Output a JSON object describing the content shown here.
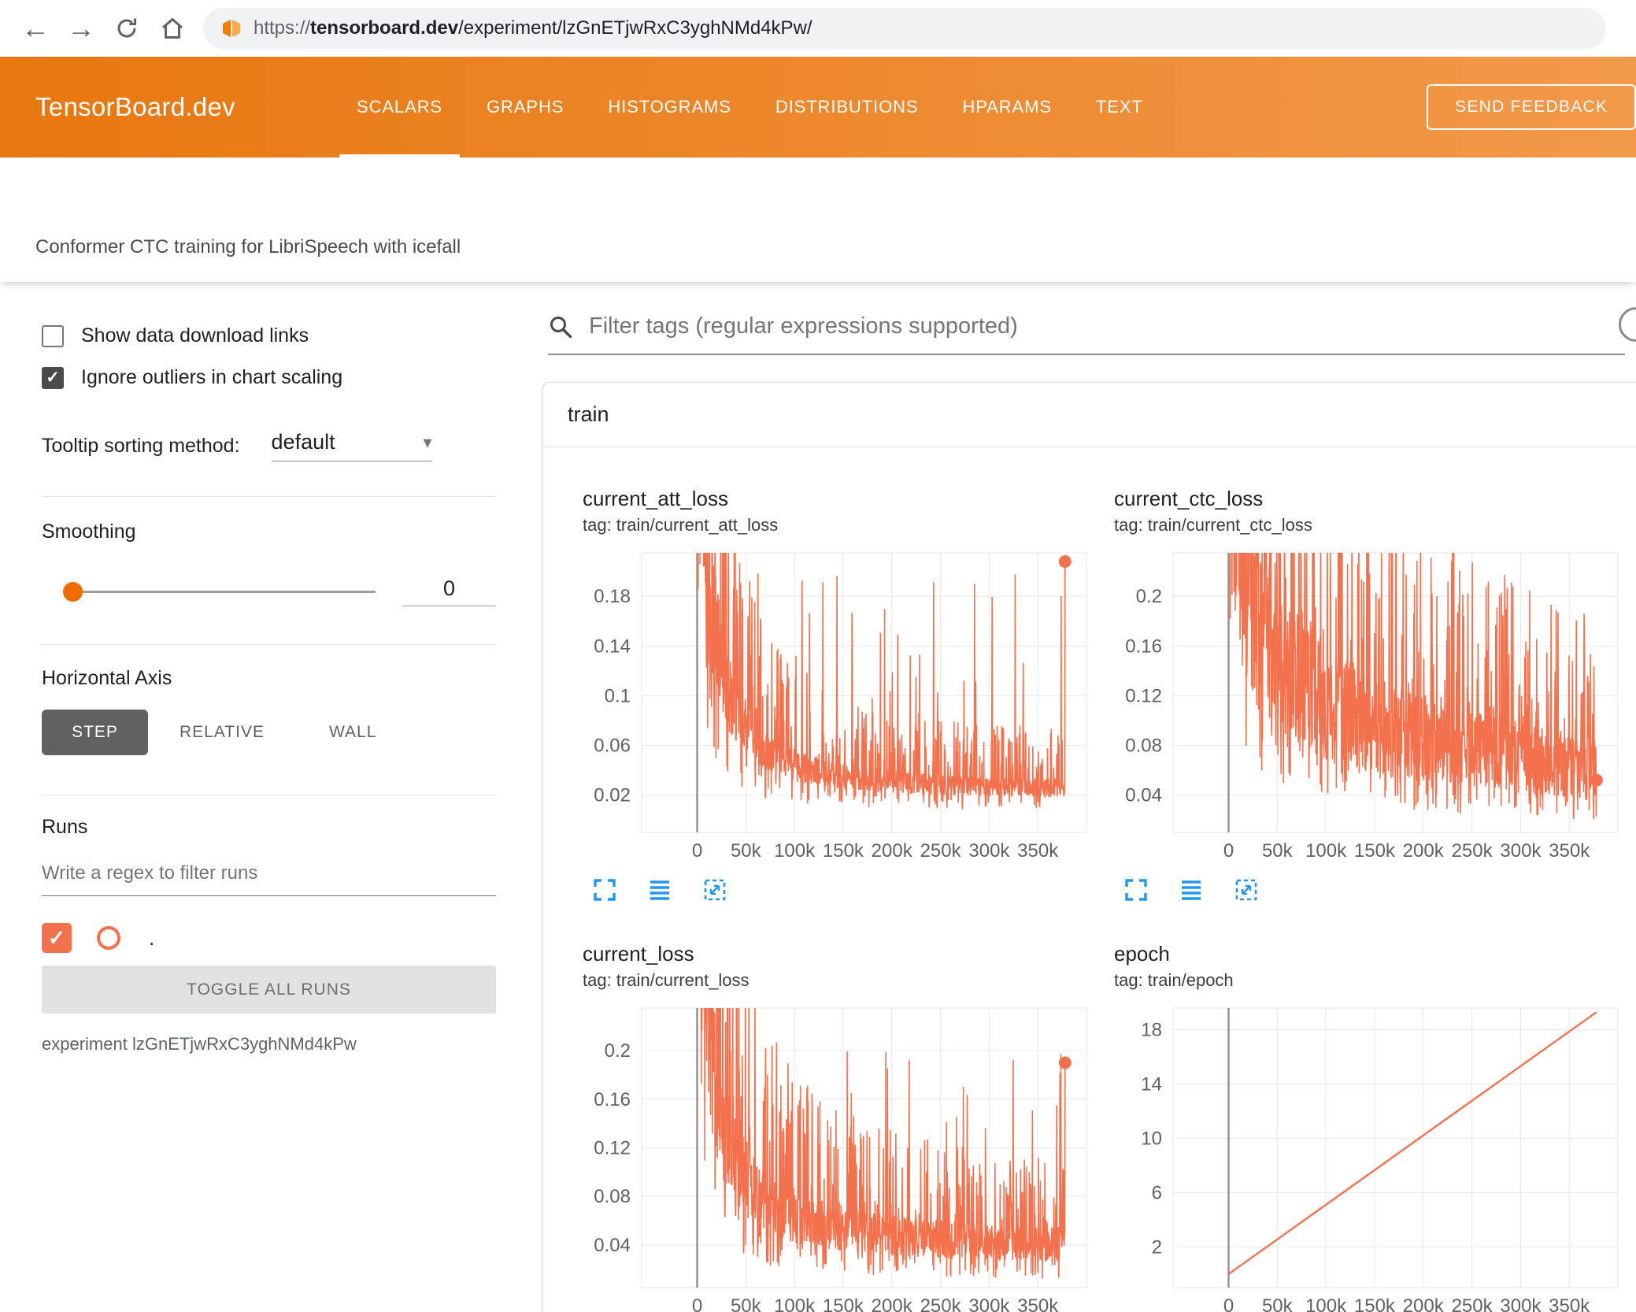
{
  "browser": {
    "url": {
      "scheme": "https://",
      "domain": "tensorboard.dev",
      "path": "/experiment/lzGnETjwRxC3yghNMd4kPw/"
    }
  },
  "header": {
    "brand": "TensorBoard.dev",
    "tabs": [
      {
        "label": "SCALARS",
        "active": true
      },
      {
        "label": "GRAPHS",
        "active": false
      },
      {
        "label": "HISTOGRAMS",
        "active": false
      },
      {
        "label": "DISTRIBUTIONS",
        "active": false
      },
      {
        "label": "HPARAMS",
        "active": false
      },
      {
        "label": "TEXT",
        "active": false
      }
    ],
    "feedback_button": "SEND FEEDBACK"
  },
  "experiment_title": "Conformer CTC training for LibriSpeech with icefall",
  "sidebar": {
    "show_download_label": "Show data download links",
    "show_download_checked": false,
    "ignore_outliers_label": "Ignore outliers in chart scaling",
    "ignore_outliers_checked": true,
    "tooltip_sorting_label": "Tooltip sorting method:",
    "tooltip_sorting_value": "default",
    "smoothing_label": "Smoothing",
    "smoothing_value": "0",
    "horizontal_axis_label": "Horizontal Axis",
    "axis_options": [
      {
        "label": "STEP",
        "selected": true
      },
      {
        "label": "RELATIVE",
        "selected": false
      },
      {
        "label": "WALL",
        "selected": false
      }
    ],
    "runs_label": "Runs",
    "runs_filter_placeholder": "Write a regex to filter runs",
    "run_name": ".",
    "run_checked": true,
    "toggle_all_label": "TOGGLE ALL RUNS",
    "experiment_line": "experiment lzGnETjwRxC3yghNMd4kPw"
  },
  "main": {
    "filter_placeholder": "Filter tags (regular expressions supported)",
    "section_title": "train"
  },
  "colors": {
    "header_orange": "#e8770f",
    "run_color": "#f4714e",
    "icon_blue": "#2196f3",
    "slider_orange": "#ef6c00"
  },
  "icons": {
    "back": "←",
    "forward": "→",
    "caret_down": "▾",
    "check": "✓"
  },
  "chart_data": [
    {
      "type": "line",
      "title": "current_att_loss",
      "tag": "tag: train/current_att_loss",
      "xlabel": "step",
      "grid": true,
      "xlim": [
        -57000,
        400000
      ],
      "ylim": [
        -0.01,
        0.215
      ],
      "yticks": [
        {
          "v": 0.02,
          "label": "0.02"
        },
        {
          "v": 0.06,
          "label": "0.06"
        },
        {
          "v": 0.1,
          "label": "0.1"
        },
        {
          "v": 0.14,
          "label": "0.14"
        },
        {
          "v": 0.18,
          "label": "0.18"
        }
      ],
      "xticks": [
        {
          "v": 0,
          "label": "0"
        },
        {
          "v": 50000,
          "label": "50k"
        },
        {
          "v": 100000,
          "label": "100k"
        },
        {
          "v": 150000,
          "label": "150k"
        },
        {
          "v": 200000,
          "label": "200k"
        },
        {
          "v": 250000,
          "label": "250k"
        },
        {
          "v": 300000,
          "label": "300k"
        },
        {
          "v": 350000,
          "label": "350k"
        }
      ],
      "series": {
        "name": ".",
        "color": "#f4714e",
        "width": 1.6,
        "noisy": true,
        "seed": 11,
        "points": 1150,
        "xmax": 378000,
        "trend": [
          [
            0,
            0.5
          ],
          [
            5000,
            0.3
          ],
          [
            15000,
            0.17
          ],
          [
            30000,
            0.105
          ],
          [
            60000,
            0.062
          ],
          [
            100000,
            0.044
          ],
          [
            150000,
            0.035
          ],
          [
            200000,
            0.031
          ],
          [
            260000,
            0.028
          ],
          [
            320000,
            0.027
          ],
          [
            378000,
            0.026
          ]
        ],
        "jitter": [
          0.7,
          1.3
        ],
        "spike_prob": 0.05,
        "spike_max": 0.2,
        "last_value": 0.208,
        "end_marker": true
      }
    },
    {
      "type": "line",
      "title": "current_ctc_loss",
      "tag": "tag: train/current_ctc_loss",
      "xlabel": "step",
      "grid": true,
      "xlim": [
        -57000,
        400000
      ],
      "ylim": [
        0.01,
        0.235
      ],
      "yticks": [
        {
          "v": 0.04,
          "label": "0.04"
        },
        {
          "v": 0.08,
          "label": "0.08"
        },
        {
          "v": 0.12,
          "label": "0.12"
        },
        {
          "v": 0.16,
          "label": "0.16"
        },
        {
          "v": 0.2,
          "label": "0.2"
        }
      ],
      "xticks": [
        {
          "v": 0,
          "label": "0"
        },
        {
          "v": 50000,
          "label": "50k"
        },
        {
          "v": 100000,
          "label": "100k"
        },
        {
          "v": 150000,
          "label": "150k"
        },
        {
          "v": 200000,
          "label": "200k"
        },
        {
          "v": 250000,
          "label": "250k"
        },
        {
          "v": 300000,
          "label": "300k"
        },
        {
          "v": 350000,
          "label": "350k"
        }
      ],
      "series": {
        "name": ".",
        "color": "#f4714e",
        "width": 1.6,
        "noisy": true,
        "seed": 23,
        "points": 1150,
        "xmax": 378000,
        "trend": [
          [
            0,
            0.55
          ],
          [
            5000,
            0.36
          ],
          [
            15000,
            0.25
          ],
          [
            30000,
            0.2
          ],
          [
            60000,
            0.155
          ],
          [
            100000,
            0.125
          ],
          [
            150000,
            0.103
          ],
          [
            200000,
            0.09
          ],
          [
            260000,
            0.08
          ],
          [
            320000,
            0.072
          ],
          [
            378000,
            0.065
          ]
        ],
        "jitter": [
          0.55,
          1.32
        ],
        "spike_prob": 0.04,
        "spike_max": 0.18,
        "last_value": 0.052,
        "end_marker": true
      }
    },
    {
      "type": "line",
      "title": "current_loss",
      "tag": "tag: train/current_loss",
      "xlabel": "step",
      "grid": true,
      "xlim": [
        -57000,
        400000
      ],
      "ylim": [
        0.005,
        0.235
      ],
      "yticks": [
        {
          "v": 0.04,
          "label": "0.04"
        },
        {
          "v": 0.08,
          "label": "0.08"
        },
        {
          "v": 0.12,
          "label": "0.12"
        },
        {
          "v": 0.16,
          "label": "0.16"
        },
        {
          "v": 0.2,
          "label": "0.2"
        }
      ],
      "xticks": [
        {
          "v": 0,
          "label": "0"
        },
        {
          "v": 50000,
          "label": "50k"
        },
        {
          "v": 100000,
          "label": "100k"
        },
        {
          "v": 150000,
          "label": "150k"
        },
        {
          "v": 200000,
          "label": "200k"
        },
        {
          "v": 250000,
          "label": "250k"
        },
        {
          "v": 300000,
          "label": "300k"
        },
        {
          "v": 350000,
          "label": "350k"
        }
      ],
      "series": {
        "name": ".",
        "color": "#f4714e",
        "width": 1.6,
        "noisy": true,
        "seed": 37,
        "points": 1150,
        "xmax": 378000,
        "trend": [
          [
            0,
            0.55
          ],
          [
            5000,
            0.33
          ],
          [
            15000,
            0.19
          ],
          [
            30000,
            0.125
          ],
          [
            60000,
            0.085
          ],
          [
            100000,
            0.063
          ],
          [
            150000,
            0.053
          ],
          [
            200000,
            0.048
          ],
          [
            260000,
            0.044
          ],
          [
            320000,
            0.041
          ],
          [
            378000,
            0.041
          ]
        ],
        "jitter": [
          0.65,
          1.35
        ],
        "spike_prob": 0.05,
        "spike_max": 0.2,
        "last_value": 0.19,
        "end_marker": true
      }
    },
    {
      "type": "line",
      "title": "epoch",
      "tag": "tag: train/epoch",
      "xlabel": "step",
      "grid": true,
      "xlim": [
        -57000,
        400000
      ],
      "ylim": [
        -1,
        19.6
      ],
      "yticks": [
        {
          "v": 2,
          "label": "2"
        },
        {
          "v": 6,
          "label": "6"
        },
        {
          "v": 10,
          "label": "10"
        },
        {
          "v": 14,
          "label": "14"
        },
        {
          "v": 18,
          "label": "18"
        }
      ],
      "xticks": [
        {
          "v": 0,
          "label": "0"
        },
        {
          "v": 50000,
          "label": "50k"
        },
        {
          "v": 100000,
          "label": "100k"
        },
        {
          "v": 150000,
          "label": "150k"
        },
        {
          "v": 200000,
          "label": "200k"
        },
        {
          "v": 250000,
          "label": "250k"
        },
        {
          "v": 300000,
          "label": "300k"
        },
        {
          "v": 350000,
          "label": "350k"
        }
      ],
      "series": {
        "name": ".",
        "color": "#f4714e",
        "width": 2.4,
        "noisy": false,
        "seed": 1,
        "points": 2,
        "xmax": 378000,
        "trend": [
          [
            0,
            0
          ],
          [
            378000,
            19.3
          ]
        ],
        "end_marker": false
      }
    }
  ]
}
